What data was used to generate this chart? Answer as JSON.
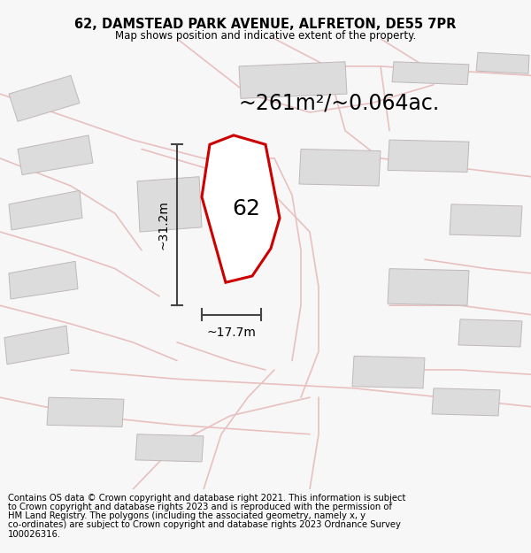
{
  "title": "62, DAMSTEAD PARK AVENUE, ALFRETON, DE55 7PR",
  "subtitle": "Map shows position and indicative extent of the property.",
  "area_text": "~261m²/~0.064ac.",
  "dim_vertical": "~31.2m",
  "dim_horizontal": "~17.7m",
  "label_62": "62",
  "footer_lines": [
    "Contains OS data © Crown copyright and database right 2021. This information is subject",
    "to Crown copyright and database rights 2023 and is reproduced with the permission of",
    "HM Land Registry. The polygons (including the associated geometry, namely x, y",
    "co-ordinates) are subject to Crown copyright and database rights 2023 Ordnance Survey",
    "100026316."
  ],
  "bg_color": "#f7f7f7",
  "map_bg": "#eeecec",
  "plot_fill": "#ffffff",
  "plot_edge": "#cc0000",
  "neighbor_fill": "#dcdcdc",
  "neighbor_edge": "#c0b8b8",
  "road_color": "#e8c0c0",
  "dim_line_color": "#444444",
  "title_color": "#000000",
  "footer_color": "#000000",
  "title_fontsize": 10.5,
  "subtitle_fontsize": 8.5,
  "area_fontsize": 17,
  "dim_fontsize": 10,
  "label_fontsize": 18,
  "footer_fontsize": 7.2
}
